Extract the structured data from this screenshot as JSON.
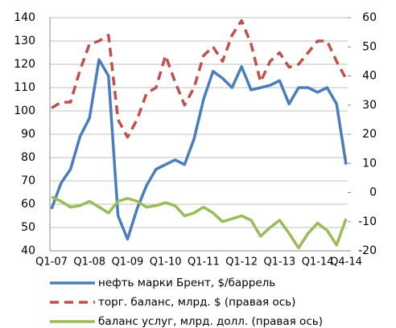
{
  "chart_data": {
    "type": "line",
    "categories": [
      "Q1-07",
      null,
      null,
      null,
      "Q1-08",
      null,
      null,
      null,
      "Q1-09",
      null,
      null,
      null,
      "Q1-10",
      null,
      null,
      null,
      "Q1-11",
      null,
      null,
      null,
      "Q1-12",
      null,
      null,
      null,
      "Q1-13",
      null,
      null,
      null,
      "Q1-14",
      null,
      null,
      "Q4-14"
    ],
    "series": [
      {
        "name": "нефть марки Брент, $/баррель",
        "color": "#4a7ebb",
        "axis": "y",
        "dash": false,
        "values": [
          58,
          69,
          75,
          89,
          97,
          122,
          115,
          55,
          45,
          58,
          68,
          75,
          77,
          79,
          77,
          88,
          105,
          117,
          114,
          110,
          119,
          109,
          110,
          111,
          113,
          103,
          110,
          110,
          108,
          110,
          103,
          77
        ]
      },
      {
        "name": "торг. баланс, млрд. $ (правая ось)",
        "color": "#c0504d",
        "axis": "y2",
        "dash": true,
        "values": [
          29,
          31,
          31,
          42,
          51,
          52,
          54,
          25,
          19,
          25,
          34,
          36,
          47,
          38,
          30,
          36,
          47,
          50,
          45,
          54,
          59,
          51,
          38,
          45,
          48,
          43,
          44,
          48,
          52,
          52,
          45,
          39
        ]
      },
      {
        "name": "баланс услуг, млрд. долл. (правая ось)",
        "color": "#9bbb59",
        "axis": "y2",
        "dash": false,
        "values": [
          -1.5,
          -3,
          -5,
          -4.5,
          -3,
          -5,
          -7,
          -3,
          -2,
          -3,
          -5,
          -4.5,
          -3.5,
          -4.5,
          -8,
          -7,
          -5,
          -7,
          -10,
          -9,
          -8,
          -9.5,
          -15,
          -12,
          -9.5,
          -14,
          -19,
          -14,
          -10.5,
          -13,
          -18,
          -9
        ]
      }
    ],
    "ylim": [
      40,
      140
    ],
    "yticks": [
      40,
      50,
      60,
      70,
      80,
      90,
      100,
      110,
      120,
      130,
      140
    ],
    "y2lim": [
      -20,
      60
    ],
    "y2ticks": [
      -20,
      -10,
      0,
      10,
      20,
      30,
      40,
      50,
      60
    ],
    "grid": true,
    "legend": "bottom"
  }
}
